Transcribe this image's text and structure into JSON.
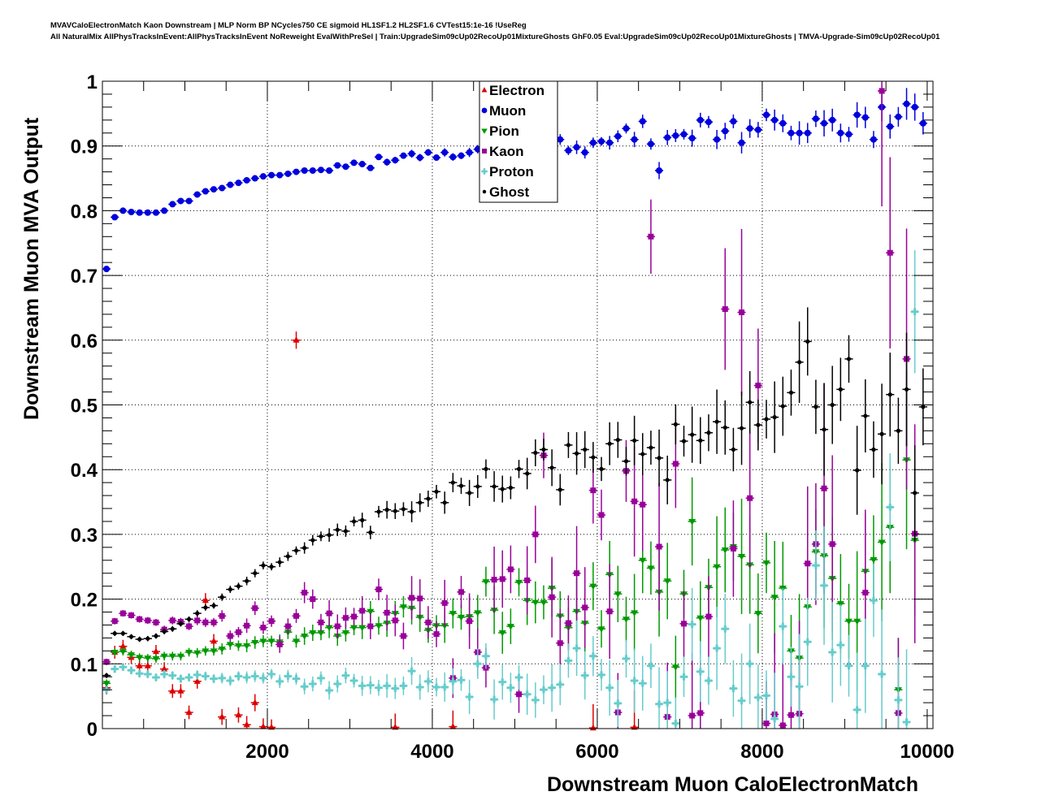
{
  "title_lines": [
    "MVAVCaloElectronMatch Kaon Downstream | MLP Norm BP NCycles750 CE sigmoid HL1SF1.2 HL2SF1.6 CVTest15:1e-16 !UseReg",
    "All NaturalMix AllPhysTracksInEvent:AllPhysTracksInEvent NoReweight EvalWithPreSel | Train:UpgradeSim09cUp02RecoUp01MixtureGhosts GhF0.05 Eval:UpgradeSim09cUp02RecoUp01MixtureGhosts | TMVA-Upgrade-Sim09cUp02RecoUp01"
  ],
  "chart_data": {
    "type": "scatter",
    "xlabel": "Downstream Muon CaloElectronMatch",
    "ylabel": "Downstream Muon MVA Output",
    "xlim": [
      0,
      10070
    ],
    "ylim": [
      0,
      1
    ],
    "grid": true,
    "legend_position": "top-center",
    "x_ticks": [
      2000,
      4000,
      6000,
      8000,
      10000
    ],
    "x_tick_labels": [
      "2000",
      "4000",
      "6000",
      "8000",
      "10000"
    ],
    "y_ticks": [
      0,
      0.1,
      0.2,
      0.3,
      0.4,
      0.5,
      0.6,
      0.7,
      0.8,
      0.9,
      1
    ],
    "y_tick_labels": [
      "0",
      "0.1",
      "0.2",
      "0.3",
      "0.4",
      "0.5",
      "0.6",
      "0.7",
      "0.8",
      "0.9",
      "1"
    ],
    "bins": {
      "first_center": 50,
      "width": 100,
      "count": 100
    },
    "series": [
      {
        "name": "Electron",
        "color": "#dd0000",
        "marker": "triangle-up",
        "yerr_start": 0.01,
        "yerr_end": 0.1,
        "values": [
          0.063,
          0.118,
          0.127,
          0.11,
          0.097,
          0.097,
          0.119,
          0.092,
          0.058,
          0.058,
          0.025,
          0.073,
          0.198,
          0.135,
          0.018,
          null,
          0.021,
          0.006,
          0.04,
          0.003,
          0.002,
          null,
          null,
          0.6,
          null,
          null,
          null,
          null,
          null,
          null,
          null,
          null,
          null,
          null,
          null,
          0.002,
          null,
          null,
          null,
          null,
          null,
          null,
          0.003,
          null,
          null,
          null,
          null,
          null,
          null,
          null,
          null,
          null,
          null,
          null,
          null,
          null,
          null,
          null,
          null,
          0.001,
          null,
          null,
          null,
          null,
          0.002,
          null,
          null,
          null,
          null,
          null,
          null,
          null,
          null,
          null,
          null,
          null,
          null,
          null,
          null,
          null,
          null,
          null,
          null,
          null,
          null,
          null,
          null,
          null,
          null,
          null,
          null,
          null,
          null,
          null,
          null,
          null,
          null,
          null,
          null,
          null
        ]
      },
      {
        "name": "Muon",
        "color": "#0000dd",
        "marker": "circle",
        "yerr_start": 0.003,
        "yerr_end": 0.02,
        "values": [
          0.71,
          0.79,
          0.8,
          0.798,
          0.797,
          0.797,
          0.797,
          0.8,
          0.81,
          0.815,
          0.815,
          0.825,
          0.83,
          0.833,
          0.835,
          0.84,
          0.843,
          0.847,
          0.85,
          0.853,
          0.855,
          0.855,
          0.857,
          0.86,
          0.862,
          0.862,
          0.863,
          0.862,
          0.87,
          0.868,
          0.874,
          0.872,
          0.866,
          0.883,
          0.875,
          0.878,
          0.885,
          0.888,
          0.882,
          0.89,
          0.882,
          0.89,
          0.883,
          0.885,
          0.89,
          0.895,
          0.9,
          0.9,
          0.9,
          0.902,
          0.9,
          0.905,
          0.9,
          0.905,
          0.91,
          0.91,
          0.893,
          0.898,
          0.89,
          0.905,
          0.907,
          0.905,
          0.915,
          0.927,
          0.91,
          0.938,
          0.903,
          0.862,
          0.913,
          0.916,
          0.918,
          0.912,
          0.94,
          0.937,
          0.91,
          0.923,
          0.938,
          0.905,
          0.927,
          0.925,
          0.948,
          0.94,
          0.935,
          0.92,
          0.92,
          0.92,
          0.942,
          0.935,
          0.94,
          0.92,
          0.918,
          0.948,
          0.944,
          0.91,
          0.96,
          0.93,
          0.945,
          0.965,
          0.96,
          0.935
        ]
      },
      {
        "name": "Pion",
        "color": "#009900",
        "marker": "triangle-down",
        "yerr_start": 0.006,
        "yerr_end": 0.11,
        "values": [
          0.07,
          0.118,
          0.119,
          0.114,
          0.11,
          0.109,
          0.108,
          0.112,
          0.112,
          0.112,
          0.118,
          0.117,
          0.12,
          0.12,
          0.123,
          0.13,
          0.128,
          0.128,
          0.133,
          0.135,
          0.135,
          0.134,
          0.149,
          0.135,
          0.143,
          0.148,
          0.148,
          0.156,
          0.143,
          0.148,
          0.156,
          0.156,
          0.181,
          0.159,
          0.163,
          0.178,
          0.188,
          0.186,
          0.172,
          0.152,
          0.159,
          0.159,
          0.178,
          0.172,
          0.173,
          0.179,
          0.227,
          0.183,
          0.148,
          0.158,
          0.226,
          0.198,
          0.195,
          0.195,
          0.217,
          0.174,
          0.156,
          0.181,
          0.163,
          0.22,
          0.154,
          0.238,
          0.208,
          0.169,
          0.179,
          0.26,
          0.248,
          0.211,
          0.228,
          0.095,
          0.208,
          0.32,
          0.171,
          0.218,
          0.25,
          0.276,
          0.281,
          0.266,
          0.253,
          0.178,
          0.256,
          0.203,
          0.217,
          0.12,
          0.109,
          0.188,
          0.273,
          0.267,
          0.232,
          0.193,
          0.166,
          0.166,
          0.243,
          0.261,
          0.288,
          0.311,
          0.06,
          0.415,
          0.291,
          null
        ]
      },
      {
        "name": "Kaon",
        "color": "#990099",
        "marker": "square",
        "yerr_start": 0.005,
        "yerr_end": 0.16,
        "values": [
          0.103,
          0.166,
          0.178,
          0.175,
          0.169,
          0.167,
          0.164,
          0.153,
          0.167,
          0.165,
          0.158,
          0.167,
          0.164,
          0.164,
          0.174,
          0.143,
          0.149,
          0.159,
          0.186,
          0.156,
          0.166,
          0.13,
          0.158,
          0.174,
          0.21,
          0.2,
          0.164,
          0.178,
          0.158,
          0.171,
          0.173,
          0.182,
          0.158,
          0.215,
          0.179,
          0.167,
          0.143,
          0.202,
          0.201,
          0.164,
          0.146,
          0.194,
          0.078,
          0.211,
          0.166,
          0.118,
          0.094,
          0.23,
          0.231,
          0.246,
          0.053,
          0.229,
          0.3,
          0.422,
          0.203,
          0.132,
          0.163,
          0.24,
          0.187,
          0.368,
          0.33,
          0.181,
          0.025,
          0.398,
          0.351,
          0.346,
          0.76,
          0.281,
          0.018,
          0.409,
          0.162,
          0.02,
          0.024,
          0.173,
          null,
          0.648,
          0.278,
          0.643,
          0.356,
          0.53,
          0.008,
          0.022,
          0.005,
          0.021,
          0.023,
          0.255,
          0.285,
          0.371,
          0.285,
          null,
          null,
          null,
          0.21,
          null,
          0.985,
          0.735,
          0.024,
          0.571,
          0.301,
          null
        ]
      },
      {
        "name": "Proton",
        "color": "#66cccc",
        "marker": "cross",
        "yerr_start": 0.006,
        "yerr_end": 0.09,
        "values": [
          0.06,
          0.092,
          0.095,
          0.09,
          0.085,
          0.084,
          0.079,
          0.084,
          0.082,
          0.077,
          0.079,
          0.083,
          0.081,
          0.077,
          0.078,
          0.074,
          0.081,
          0.079,
          0.081,
          0.078,
          0.084,
          0.073,
          0.081,
          0.077,
          0.065,
          0.069,
          0.078,
          0.059,
          0.069,
          0.082,
          0.074,
          0.066,
          0.067,
          0.063,
          0.066,
          0.062,
          0.066,
          0.089,
          0.064,
          0.073,
          0.064,
          0.064,
          0.073,
          0.075,
          0.049,
          0.1,
          0.112,
          0.045,
          0.072,
          0.063,
          0.079,
          0.053,
          0.044,
          0.06,
          0.063,
          0.068,
          0.105,
          0.124,
          0.082,
          0.112,
          0.083,
          0.063,
          0.039,
          0.108,
          0.074,
          0.07,
          0.097,
          0.038,
          0.04,
          0.008,
          0.08,
          0.161,
          0.088,
          0.074,
          0.124,
          0.154,
          0.062,
          0.043,
          0.1,
          0.048,
          0.051,
          0.015,
          0.158,
          0.08,
          0.065,
          0.134,
          0.252,
          0.221,
          0.118,
          0.129,
          0.097,
          0.029,
          0.097,
          0.198,
          0.084,
          0.342,
          0.044,
          0.01,
          0.644,
          null
        ]
      },
      {
        "name": "Ghost",
        "color": "#000000",
        "marker": "dot",
        "yerr_start": 0.004,
        "yerr_end": 0.07,
        "values": [
          0.082,
          0.147,
          0.147,
          0.142,
          0.138,
          0.139,
          0.143,
          0.15,
          0.154,
          0.162,
          0.169,
          0.178,
          0.187,
          0.19,
          0.203,
          0.215,
          0.22,
          0.228,
          0.24,
          0.252,
          0.25,
          0.257,
          0.266,
          0.275,
          0.279,
          0.291,
          0.297,
          0.299,
          0.307,
          0.305,
          0.32,
          0.322,
          0.303,
          0.335,
          0.338,
          0.336,
          0.339,
          0.335,
          0.349,
          0.355,
          0.366,
          0.349,
          0.38,
          0.375,
          0.364,
          0.374,
          0.401,
          0.374,
          0.37,
          0.372,
          0.401,
          0.394,
          0.426,
          0.431,
          0.403,
          0.369,
          0.438,
          0.425,
          0.431,
          0.419,
          0.401,
          0.44,
          0.446,
          0.413,
          0.445,
          0.424,
          0.434,
          0.418,
          0.384,
          0.47,
          0.444,
          0.454,
          0.445,
          0.457,
          0.474,
          0.465,
          0.431,
          0.464,
          0.504,
          0.469,
          0.478,
          0.481,
          0.498,
          0.519,
          0.566,
          0.598,
          0.497,
          0.462,
          0.5,
          0.524,
          0.571,
          0.399,
          0.483,
          0.431,
          0.455,
          0.516,
          0.46,
          0.524,
          0.364,
          0.497
        ]
      }
    ]
  }
}
